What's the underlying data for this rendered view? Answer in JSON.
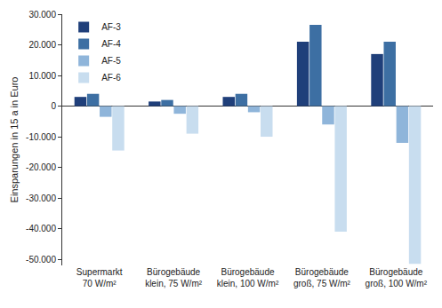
{
  "chart_data": {
    "type": "bar",
    "y_label": "Einsparungen in 15 a in Euro",
    "categories": [
      "Supermarkt\n70 W/m²",
      "Bürogebäude\nklein, 75 W/m²",
      "Bürogebäude\nklein, 100 W/m²",
      "Bürogebäude\ngroß, 75 W/m²",
      "Bürogebäude\ngroß, 100 W/m²"
    ],
    "series": [
      {
        "name": "AF-3",
        "color": "#1f3f7a",
        "values": [
          3000,
          1500,
          3000,
          21000,
          17000
        ]
      },
      {
        "name": "AF-4",
        "color": "#3d6fa3",
        "values": [
          4000,
          2000,
          4000,
          26500,
          21000
        ]
      },
      {
        "name": "AF-5",
        "color": "#8fb5da",
        "values": [
          -3500,
          -2500,
          -2000,
          -6000,
          -12000
        ]
      },
      {
        "name": "AF-6",
        "color": "#c8ddef",
        "values": [
          -14500,
          -9000,
          -10000,
          -41000,
          -51500
        ]
      }
    ],
    "ylim": [
      -52000,
      30000
    ],
    "yticks": [
      {
        "value": 30000,
        "label": "30.000"
      },
      {
        "value": 20000,
        "label": "20.000"
      },
      {
        "value": 10000,
        "label": "10.000"
      },
      0,
      {
        "value": -10000,
        "label": "-10.000"
      },
      {
        "value": -20000,
        "label": "-20.000"
      },
      {
        "value": -30000,
        "label": "-30.000"
      },
      {
        "value": -40000,
        "label": "-40.000"
      },
      {
        "value": -50000,
        "label": "-50.000"
      }
    ],
    "grid": false,
    "legend": "upper left"
  }
}
